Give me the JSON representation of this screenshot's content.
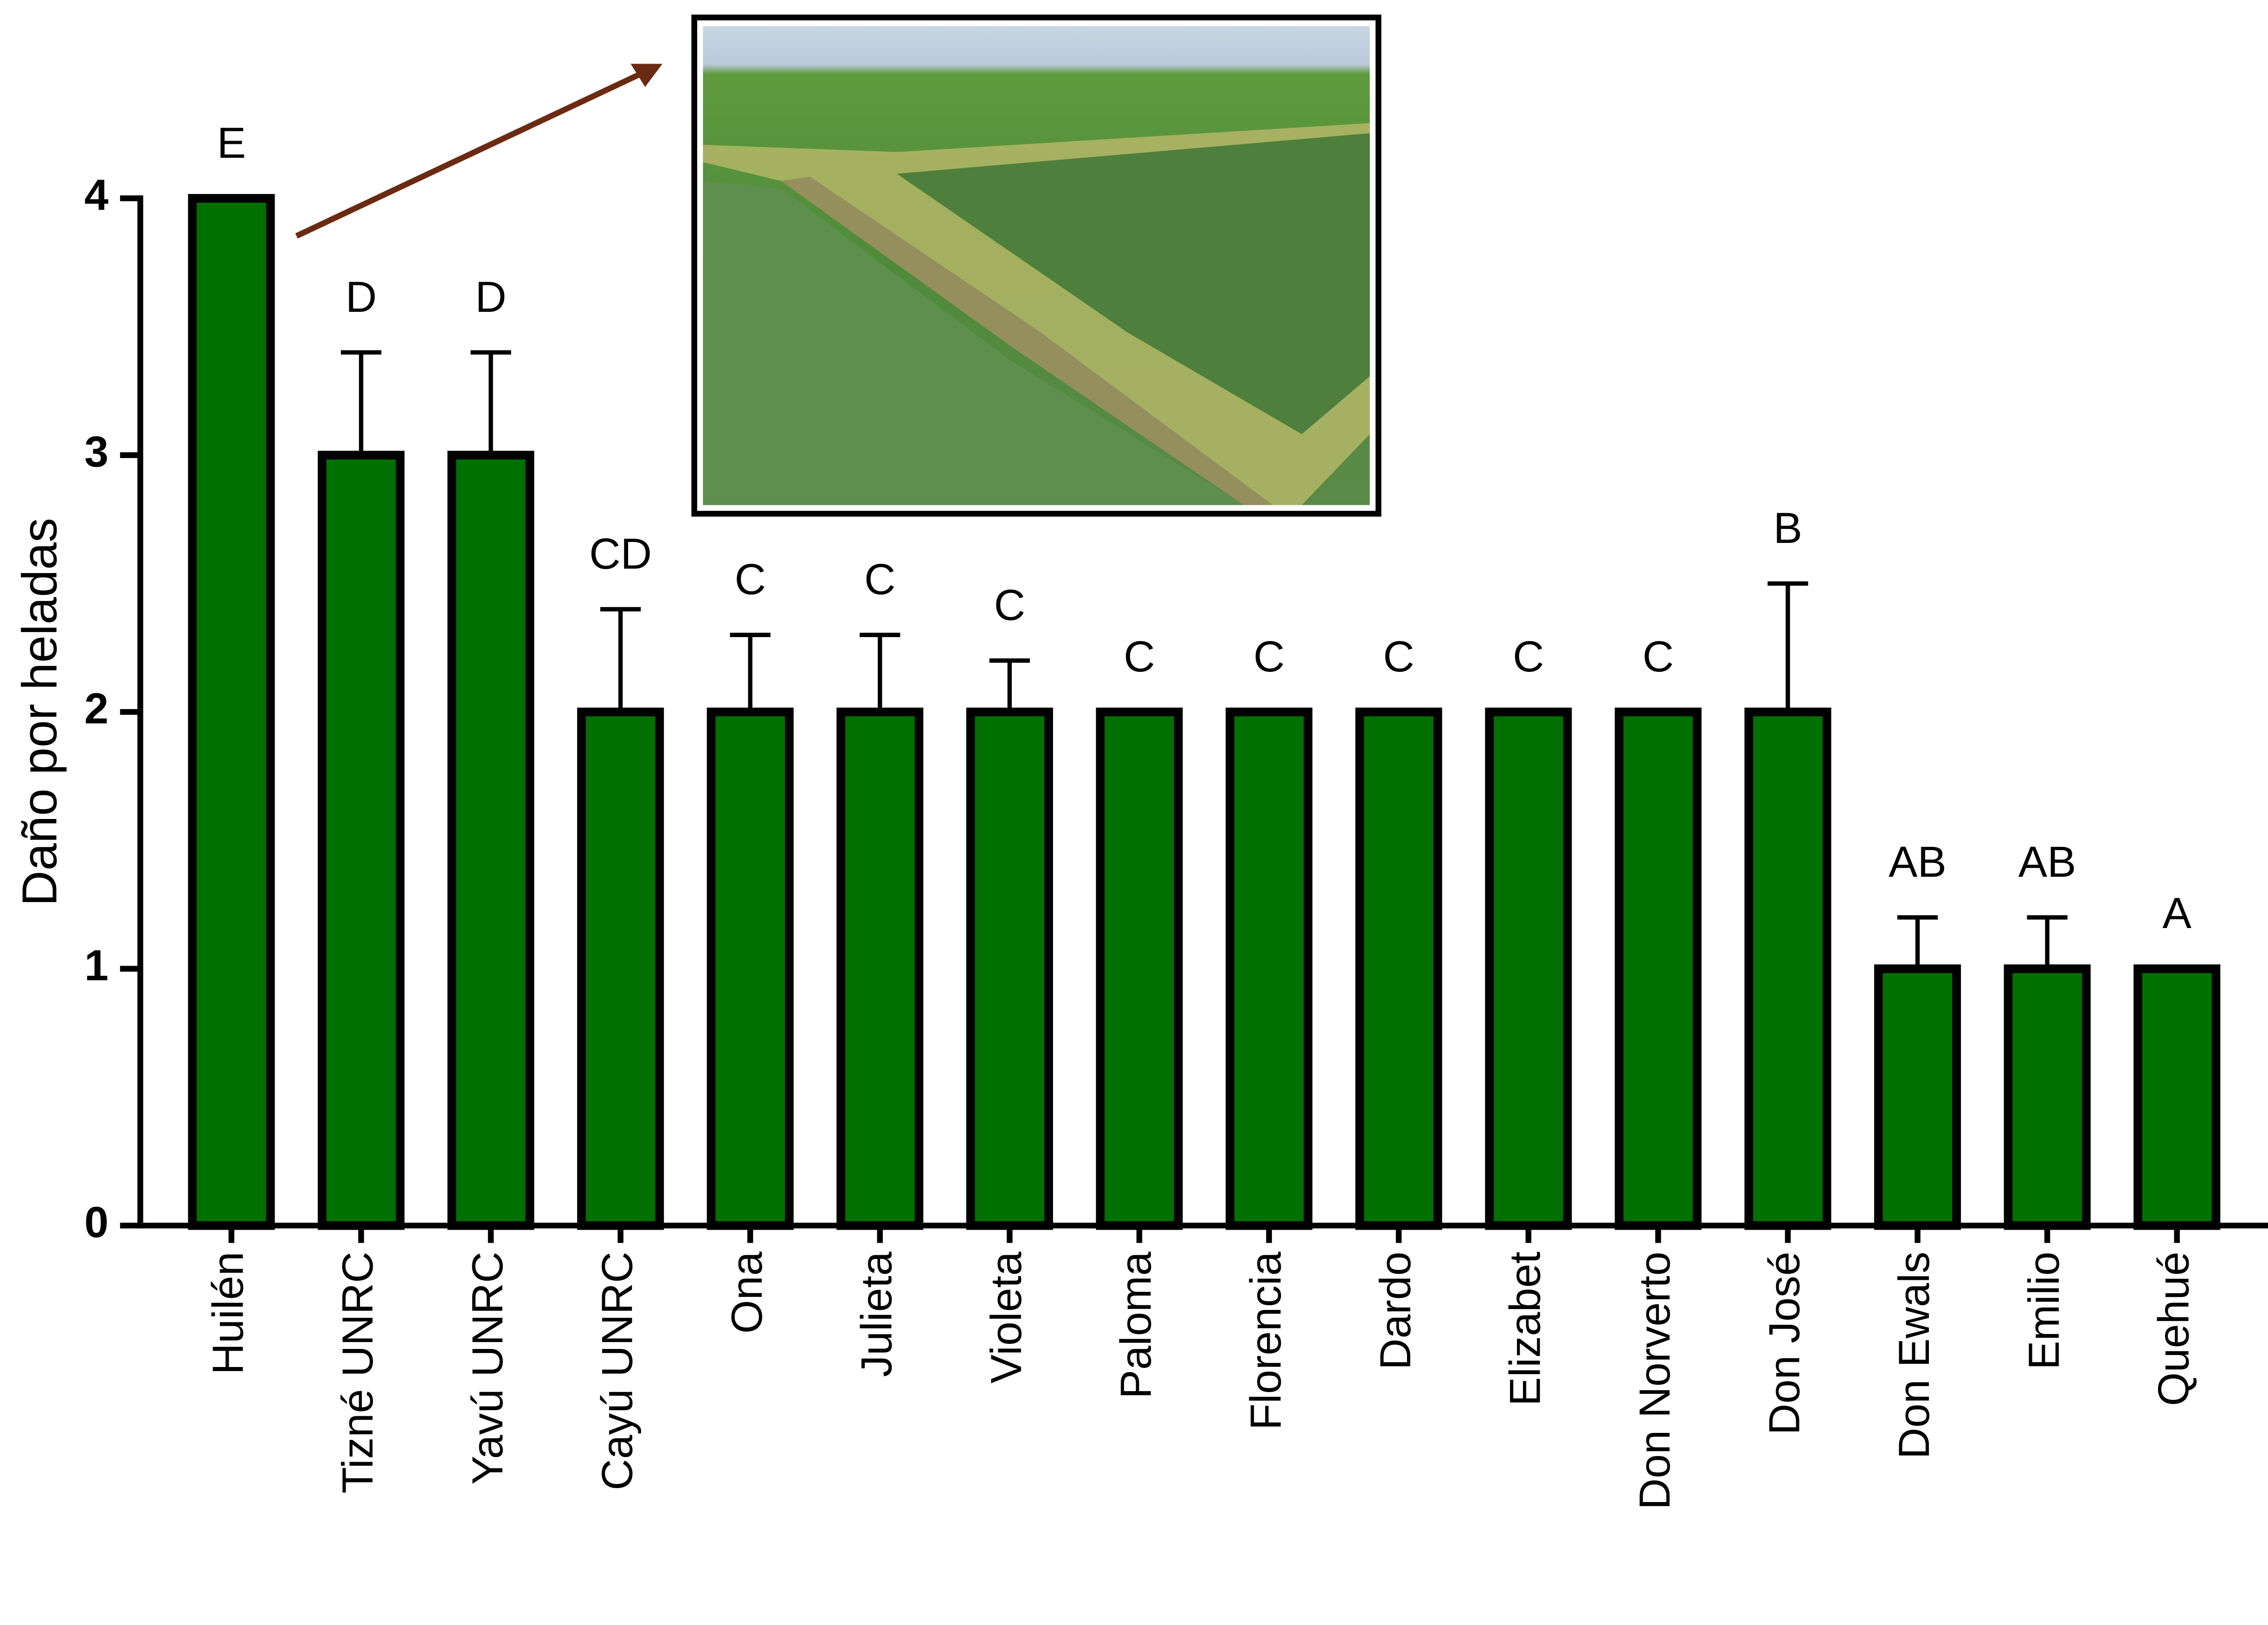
{
  "chart_data": {
    "type": "bar",
    "y_label": "Daño por heladas",
    "categories": [
      "Huilén",
      "Tizné UNRC",
      "Yavú UNRC",
      "Cayú UNRC",
      "Ona",
      "Julieta",
      "Violeta",
      "Paloma",
      "Florencia",
      "Dardo",
      "Elizabet",
      "Don Norverto",
      "Don José",
      "Don Ewals",
      "Emilio",
      "Quehué"
    ],
    "values": [
      4,
      3,
      3,
      2,
      2,
      2,
      2,
      2,
      2,
      2,
      2,
      2,
      2,
      1,
      1,
      1
    ],
    "errors": [
      null,
      0.4,
      0.4,
      0.4,
      0.3,
      0.3,
      0.2,
      null,
      null,
      null,
      null,
      null,
      0.5,
      0.2,
      0.2,
      null
    ],
    "letters": [
      "E",
      "D",
      "D",
      "CD",
      "C",
      "C",
      "C",
      "C",
      "C",
      "C",
      "C",
      "C",
      "B",
      "AB",
      "AB",
      "A"
    ],
    "color": "#007000",
    "ylim": [
      0,
      4
    ],
    "yticks": [
      0,
      1,
      2,
      3,
      4
    ]
  }
}
